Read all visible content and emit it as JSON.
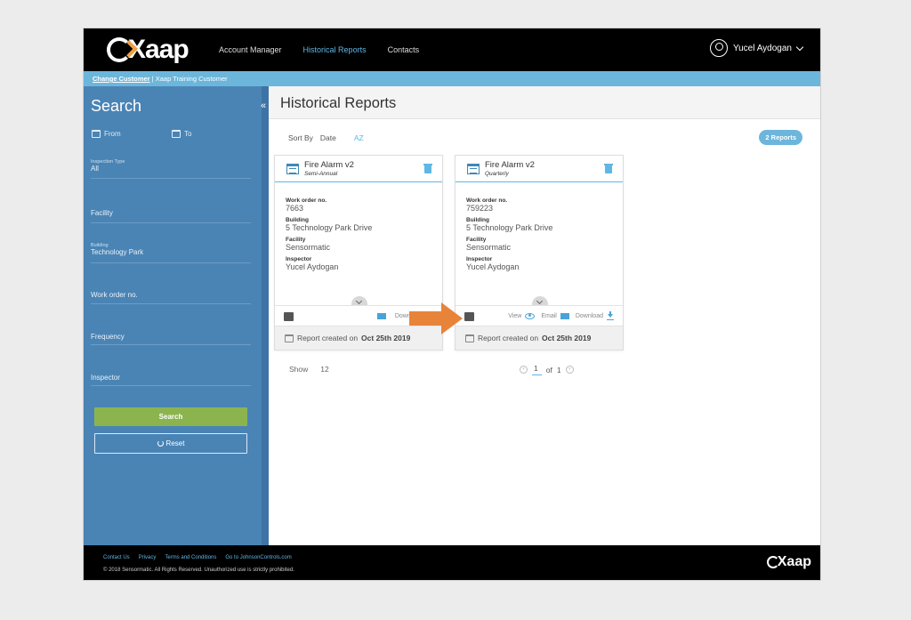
{
  "header": {
    "logo_text": "Xaap",
    "nav": [
      {
        "label": "Account Manager",
        "active": false
      },
      {
        "label": "Historical Reports",
        "active": true
      },
      {
        "label": "Contacts",
        "active": false
      }
    ],
    "user_name": "Yucel Aydogan"
  },
  "customer_bar": {
    "change_label": "Change Customer",
    "separator": "|",
    "customer_name": "Xaap Training Customer"
  },
  "sidebar": {
    "collapse_glyph": "«",
    "title": "Search",
    "from_label": "From",
    "to_label": "To",
    "inspection_type_label": "Inspection Type",
    "inspection_type_value": "All",
    "facility_placeholder": "Facility",
    "building_label": "Building",
    "building_value": "Technology Park",
    "work_order_placeholder": "Work order no.",
    "frequency_placeholder": "Frequency",
    "inspector_placeholder": "Inspector",
    "search_button": "Search",
    "reset_button": "Reset"
  },
  "main": {
    "title": "Historical Reports",
    "sort_by_label": "Sort By",
    "sort_field": "Date",
    "sort_order": "AZ",
    "report_count": "2 Reports",
    "labels": {
      "work_order": "Work order no.",
      "building": "Building",
      "facility": "Facility",
      "inspector": "Inspector",
      "view": "View",
      "email": "Email",
      "download": "Download",
      "created_prefix": "Report created on"
    },
    "cards": [
      {
        "title": "Fire Alarm v2",
        "subtitle": "Semi-Annual",
        "work_order": "7663",
        "building": "5 Technology Park Drive",
        "facility": "Sensormatic",
        "inspector": "Yucel Aydogan",
        "created_date": "Oct 25th 2019"
      },
      {
        "title": "Fire Alarm v2",
        "subtitle": "Quarterly",
        "work_order": "759223",
        "building": "5 Technology Park Drive",
        "facility": "Sensormatic",
        "inspector": "Yucel Aydogan",
        "created_date": "Oct 25th 2019"
      }
    ],
    "show_label": "Show",
    "show_value": "12",
    "pager": {
      "current": "1",
      "of_label": "of",
      "total": "1"
    }
  },
  "footer": {
    "links": [
      "Contact Us",
      "Privacy",
      "Terms and Conditions",
      "Go to JohnsonControls.com"
    ],
    "copyright": "© 2018 Sensormatic. All Rights Reserved. Unauthorized use is strictly prohibited.",
    "logo_text": "Xaap"
  },
  "colors": {
    "accent": "#5fb7e5",
    "sidebar": "#4a84b5",
    "search_button": "#8cb44e",
    "arrow": "#e8833a"
  }
}
